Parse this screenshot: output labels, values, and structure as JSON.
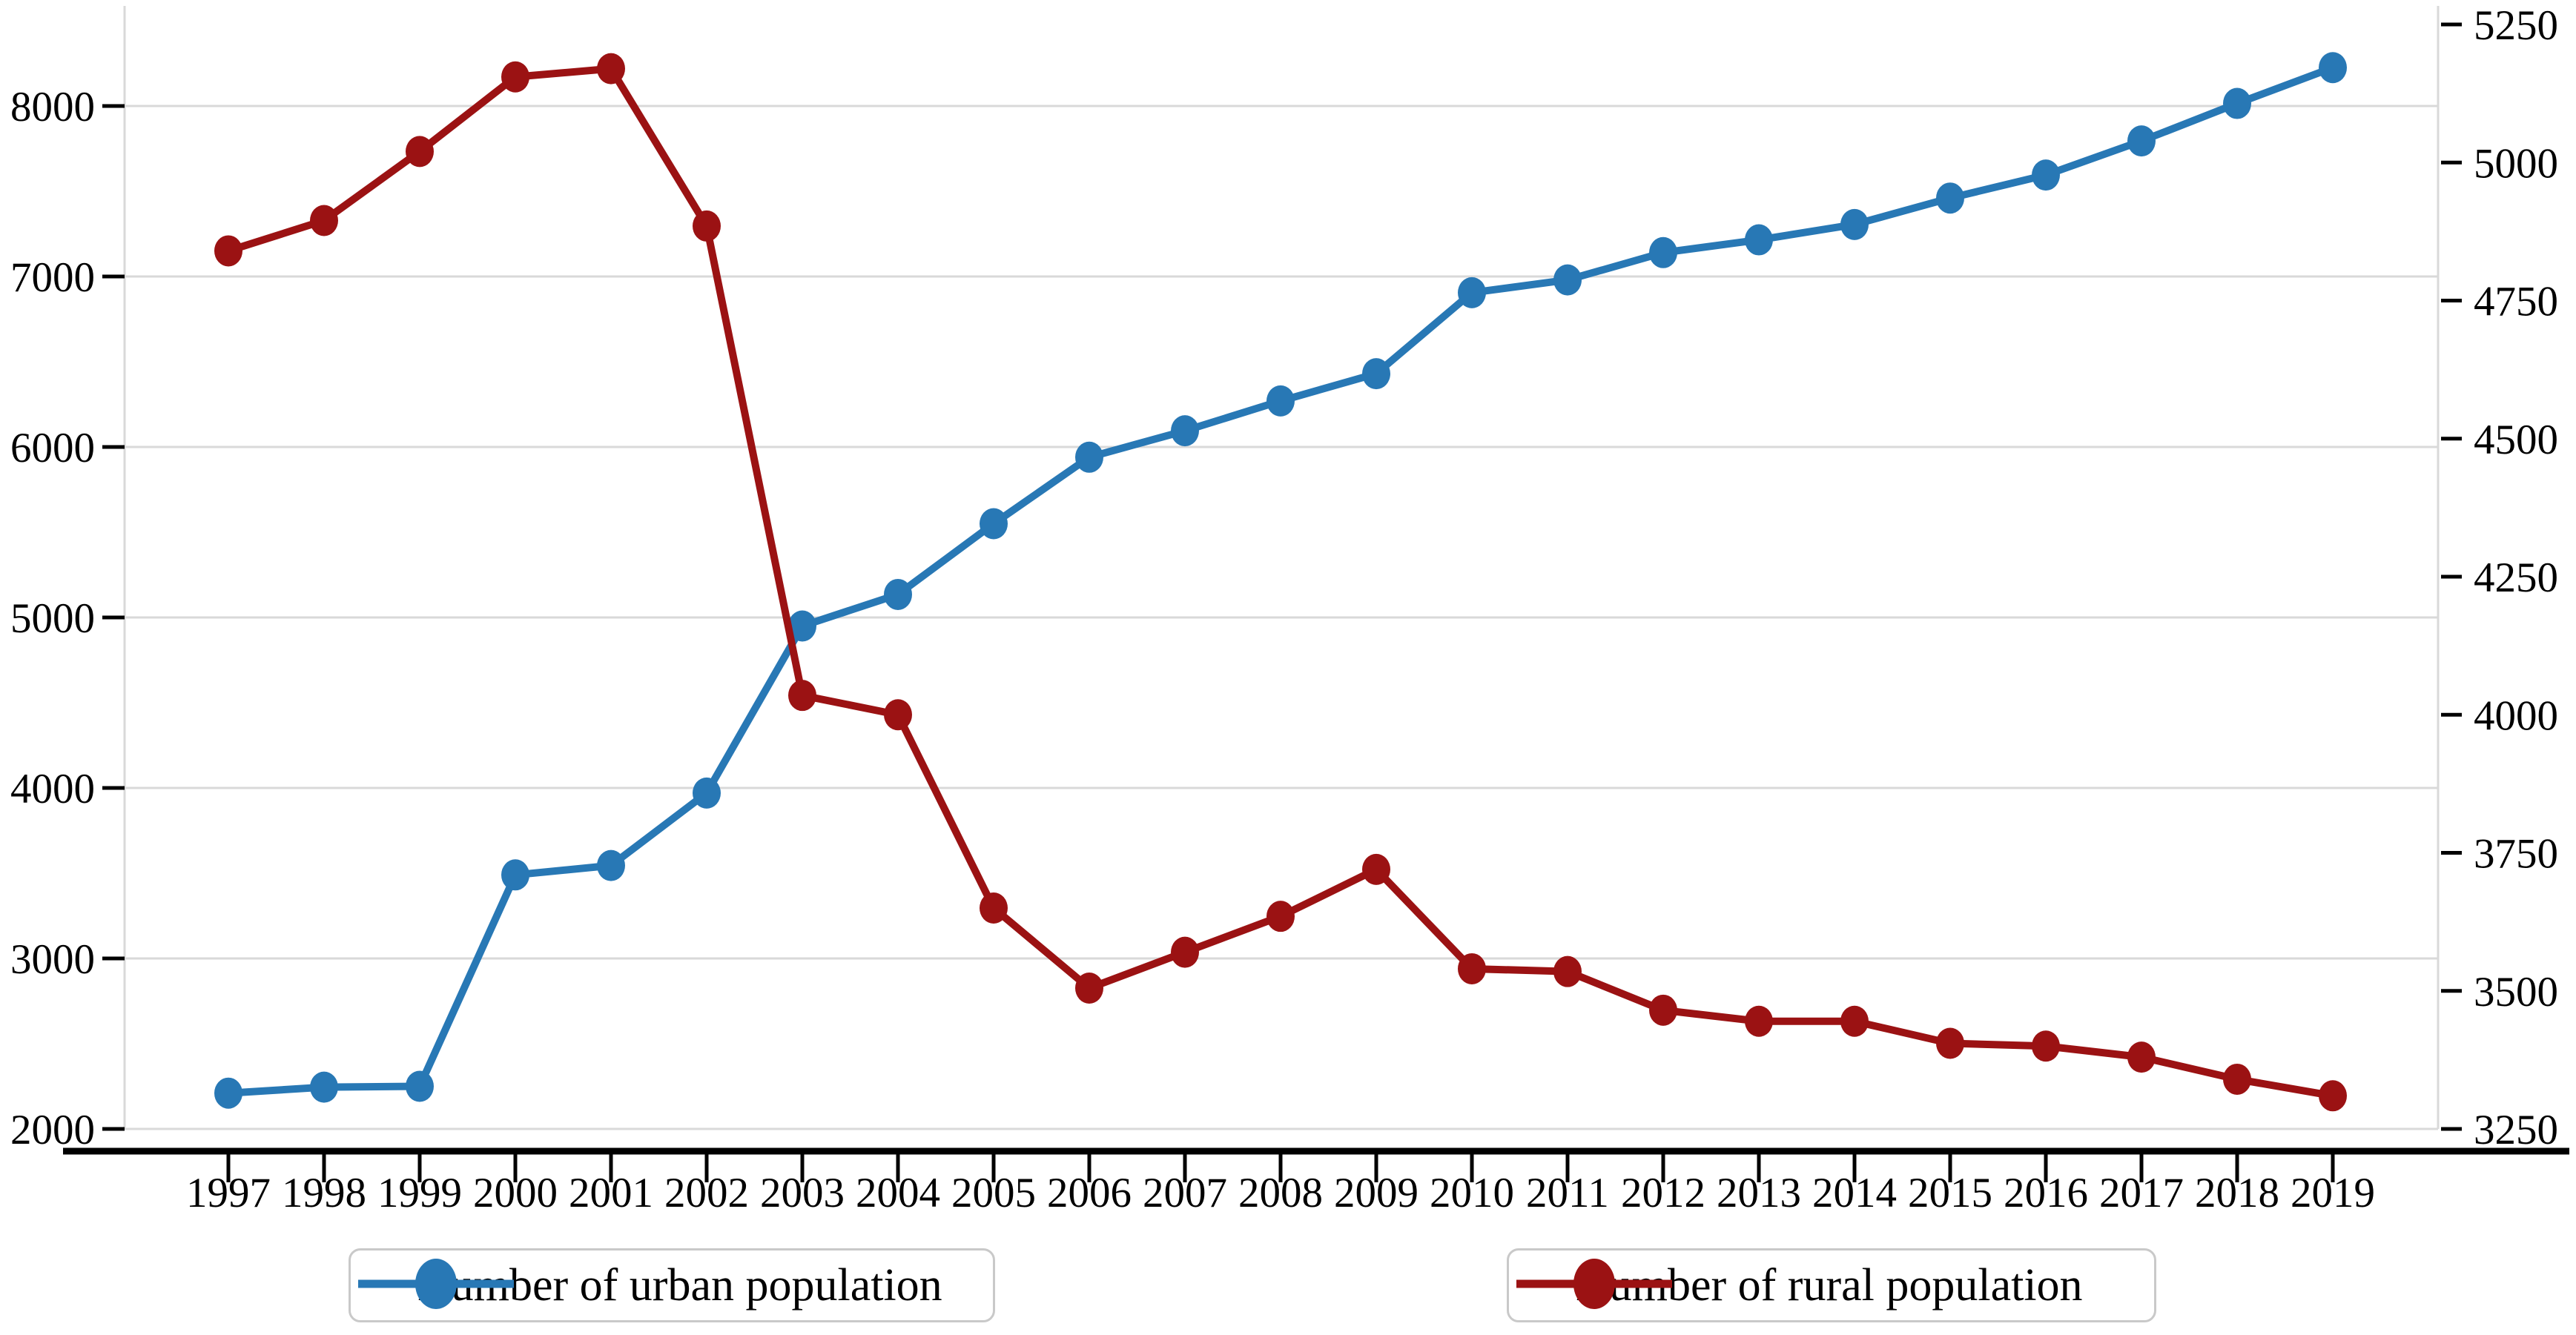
{
  "chart_data": {
    "type": "line",
    "title": "",
    "x": [
      1997,
      1998,
      1999,
      2000,
      2001,
      2002,
      2003,
      2004,
      2005,
      2006,
      2007,
      2008,
      2009,
      2010,
      2011,
      2012,
      2013,
      2014,
      2015,
      2016,
      2017,
      2018,
      2019
    ],
    "series": [
      {
        "name": "Number of urban population",
        "axis": "left",
        "color": "#2878b5",
        "values": [
          2210,
          2245,
          2250,
          3490,
          3545,
          3970,
          4950,
          5135,
          5550,
          5940,
          6095,
          6270,
          6430,
          6905,
          6980,
          7140,
          7215,
          7305,
          7460,
          7595,
          7795,
          8015,
          8225
        ]
      },
      {
        "name": "Number of rural population",
        "axis": "right",
        "color": "#9b1213",
        "values": [
          4840,
          4895,
          5020,
          5155,
          5170,
          4885,
          4035,
          4000,
          3650,
          3505,
          3570,
          3635,
          3720,
          3540,
          3535,
          3465,
          3445,
          3445,
          3405,
          3400,
          3380,
          3340,
          3310
        ]
      }
    ],
    "left_axis": {
      "ticks": [
        2000,
        3000,
        4000,
        5000,
        6000,
        7000,
        8000
      ],
      "min": 2000,
      "max": 8000
    },
    "right_axis": {
      "ticks": [
        3250,
        3500,
        3750,
        4000,
        4250,
        4500,
        4750,
        5000,
        5250
      ],
      "min": 3250,
      "max": 5250
    },
    "grid": true,
    "legend": {
      "position": "bottom",
      "items": [
        {
          "label": "Number of urban population",
          "color": "#2878b5"
        },
        {
          "label": "Number of rural population",
          "color": "#9b1213"
        }
      ]
    },
    "colors": {
      "gridline": "#d9d9d9",
      "axis_line": "#000000",
      "tick_text": "#000000"
    }
  }
}
